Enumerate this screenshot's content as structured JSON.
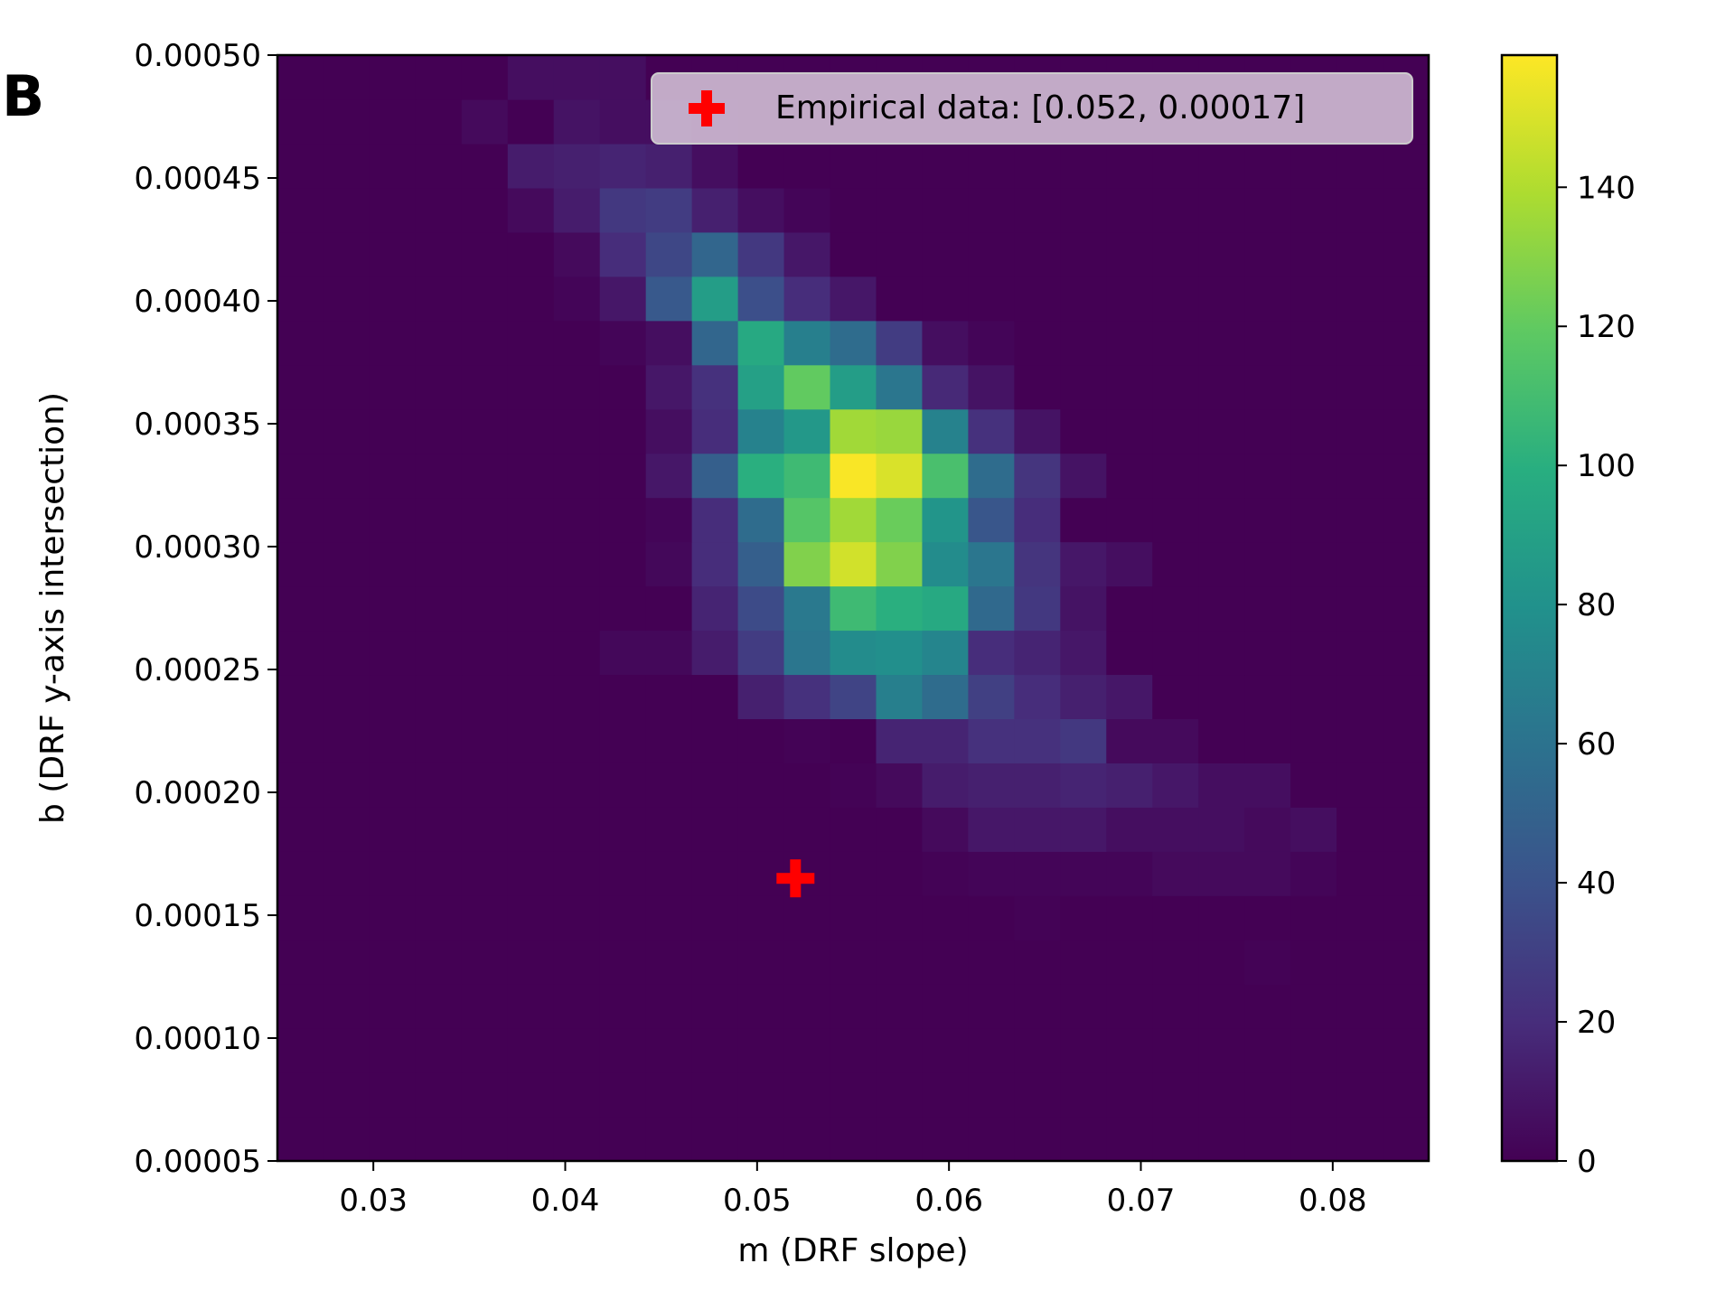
{
  "panel_label": "B",
  "chart_data": {
    "type": "heatmap",
    "xlabel": "m (DRF slope)",
    "ylabel": "b (DRF y-axis intersection)",
    "xlim": [
      0.025,
      0.085
    ],
    "ylim": [
      5e-05,
      0.0005
    ],
    "x_ticks": [
      "0.03",
      "0.04",
      "0.05",
      "0.06",
      "0.07",
      "0.08"
    ],
    "y_ticks": [
      "0.00005",
      "0.00010",
      "0.00015",
      "0.00020",
      "0.00025",
      "0.00030",
      "0.00035",
      "0.00040",
      "0.00045",
      "0.00050"
    ],
    "grid": false,
    "colormap": "viridis",
    "color_range": [
      0,
      159
    ],
    "colorbar_ticks": [
      "0",
      "20",
      "40",
      "60",
      "80",
      "100",
      "120",
      "140"
    ],
    "bins": {
      "nx": 25,
      "ny": 25,
      "x_edges": [
        0.025,
        0.085
      ],
      "y_edges": [
        5e-05,
        0.0005
      ],
      "row_order": "bottom-to-top",
      "values": [
        [
          0,
          0,
          0,
          0,
          0,
          0,
          0,
          0,
          0,
          0,
          0,
          0,
          0,
          0,
          0,
          0,
          0,
          0,
          0,
          0,
          0,
          0,
          0,
          0,
          0
        ],
        [
          0,
          0,
          0,
          0,
          0,
          0,
          0,
          0,
          0,
          0,
          0,
          0,
          0,
          0,
          0,
          0,
          0,
          0,
          0,
          0,
          0,
          0,
          0,
          0,
          0
        ],
        [
          0,
          0,
          0,
          0,
          0,
          0,
          0,
          0,
          0,
          0,
          0,
          0,
          0,
          0,
          0,
          0,
          0,
          0,
          0,
          0,
          0,
          0,
          0,
          0,
          0
        ],
        [
          0,
          0,
          0,
          0,
          0,
          0,
          0,
          0,
          0,
          0,
          0,
          0,
          0,
          0,
          0,
          0,
          0,
          0,
          0,
          0,
          0,
          0,
          0,
          0,
          0
        ],
        [
          0,
          0,
          0,
          0,
          0,
          0,
          0,
          0,
          0,
          0,
          0,
          0,
          0,
          0,
          0,
          0,
          0,
          0,
          0,
          0,
          0,
          1,
          0,
          0,
          0
        ],
        [
          0,
          0,
          0,
          0,
          0,
          0,
          0,
          0,
          0,
          0,
          0,
          0,
          0,
          0,
          0,
          0,
          1,
          0,
          0,
          0,
          0,
          0,
          0,
          0,
          0
        ],
        [
          0,
          0,
          0,
          0,
          0,
          0,
          0,
          0,
          0,
          0,
          0,
          0,
          0,
          0,
          1,
          2,
          2,
          2,
          2,
          4,
          4,
          4,
          2,
          0,
          0
        ],
        [
          0,
          0,
          0,
          0,
          0,
          0,
          0,
          0,
          0,
          0,
          0,
          0,
          0,
          0,
          4,
          10,
          10,
          10,
          6,
          6,
          6,
          4,
          6,
          0,
          0
        ],
        [
          0,
          0,
          0,
          0,
          0,
          0,
          0,
          0,
          0,
          0,
          0,
          0,
          1,
          4,
          12,
          14,
          14,
          16,
          14,
          10,
          6,
          6,
          0,
          0,
          0
        ],
        [
          0,
          0,
          0,
          0,
          0,
          0,
          0,
          0,
          0,
          0,
          0,
          1,
          0,
          16,
          16,
          22,
          22,
          26,
          4,
          4,
          0,
          0,
          0,
          0,
          0
        ],
        [
          0,
          0,
          0,
          0,
          0,
          0,
          0,
          0,
          0,
          0,
          14,
          22,
          32,
          68,
          56,
          30,
          20,
          14,
          10,
          0,
          0,
          0,
          0,
          0,
          0
        ],
        [
          0,
          0,
          0,
          0,
          0,
          0,
          0,
          3,
          3,
          12,
          28,
          62,
          76,
          78,
          72,
          20,
          16,
          10,
          0,
          0,
          0,
          0,
          0,
          0,
          0
        ],
        [
          0,
          0,
          0,
          0,
          0,
          0,
          0,
          0,
          0,
          16,
          36,
          64,
          108,
          100,
          96,
          54,
          26,
          8,
          0,
          0,
          0,
          0,
          0,
          0,
          0
        ],
        [
          0,
          0,
          0,
          0,
          0,
          0,
          0,
          0,
          3,
          20,
          48,
          128,
          148,
          128,
          76,
          62,
          24,
          10,
          6,
          0,
          0,
          0,
          0,
          0,
          0
        ],
        [
          0,
          0,
          0,
          0,
          0,
          0,
          0,
          0,
          2,
          20,
          56,
          116,
          136,
          122,
          82,
          42,
          20,
          0,
          0,
          0,
          0,
          0,
          0,
          0,
          0
        ],
        [
          0,
          0,
          0,
          0,
          0,
          0,
          0,
          0,
          10,
          48,
          100,
          108,
          158,
          150,
          112,
          56,
          24,
          8,
          0,
          0,
          0,
          0,
          0,
          0,
          0
        ],
        [
          0,
          0,
          0,
          0,
          0,
          0,
          0,
          0,
          6,
          20,
          70,
          84,
          136,
          134,
          70,
          22,
          8,
          0,
          0,
          0,
          0,
          0,
          0,
          0,
          0
        ],
        [
          0,
          0,
          0,
          0,
          0,
          0,
          0,
          0,
          10,
          22,
          90,
          120,
          88,
          62,
          18,
          8,
          0,
          0,
          0,
          0,
          0,
          0,
          0,
          0,
          0
        ],
        [
          0,
          0,
          0,
          0,
          0,
          0,
          0,
          2,
          6,
          52,
          96,
          68,
          56,
          28,
          6,
          2,
          0,
          0,
          0,
          0,
          0,
          0,
          0,
          0,
          0
        ],
        [
          0,
          0,
          0,
          0,
          0,
          0,
          2,
          10,
          44,
          88,
          38,
          20,
          10,
          0,
          0,
          0,
          0,
          0,
          0,
          0,
          0,
          0,
          0,
          0,
          0
        ],
        [
          0,
          0,
          0,
          0,
          0,
          0,
          4,
          20,
          34,
          52,
          26,
          10,
          0,
          0,
          0,
          0,
          0,
          0,
          0,
          0,
          0,
          0,
          0,
          0,
          0
        ],
        [
          0,
          0,
          0,
          0,
          0,
          4,
          12,
          26,
          28,
          14,
          6,
          2,
          0,
          0,
          0,
          0,
          0,
          0,
          0,
          0,
          0,
          0,
          0,
          0,
          0
        ],
        [
          0,
          0,
          0,
          0,
          0,
          12,
          14,
          16,
          14,
          6,
          0,
          0,
          0,
          0,
          0,
          0,
          0,
          0,
          0,
          0,
          0,
          0,
          0,
          0,
          0
        ],
        [
          0,
          0,
          0,
          0,
          4,
          0,
          8,
          6,
          6,
          2,
          0,
          0,
          0,
          0,
          0,
          0,
          0,
          0,
          0,
          0,
          0,
          0,
          0,
          0,
          0
        ],
        [
          0,
          0,
          0,
          0,
          0,
          6,
          6,
          6,
          0,
          0,
          0,
          0,
          0,
          0,
          0,
          0,
          0,
          0,
          0,
          0,
          0,
          0,
          0,
          0,
          0
        ]
      ]
    },
    "marker": {
      "label": "Empirical data: [0.052, 0.00017]",
      "x": 0.052,
      "y": 0.000165,
      "color": "#ff0000",
      "symbol": "plus"
    },
    "legend_position": "upper-right",
    "legend_background": "#d8c8dc"
  }
}
